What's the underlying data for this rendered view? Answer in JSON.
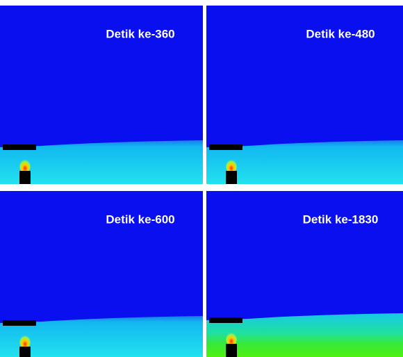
{
  "panels": [
    {
      "label": "Detik ke-360"
    },
    {
      "label": "Detik ke-480"
    },
    {
      "label": "Detik ke-600"
    },
    {
      "label": "Detik ke-1830"
    }
  ]
}
